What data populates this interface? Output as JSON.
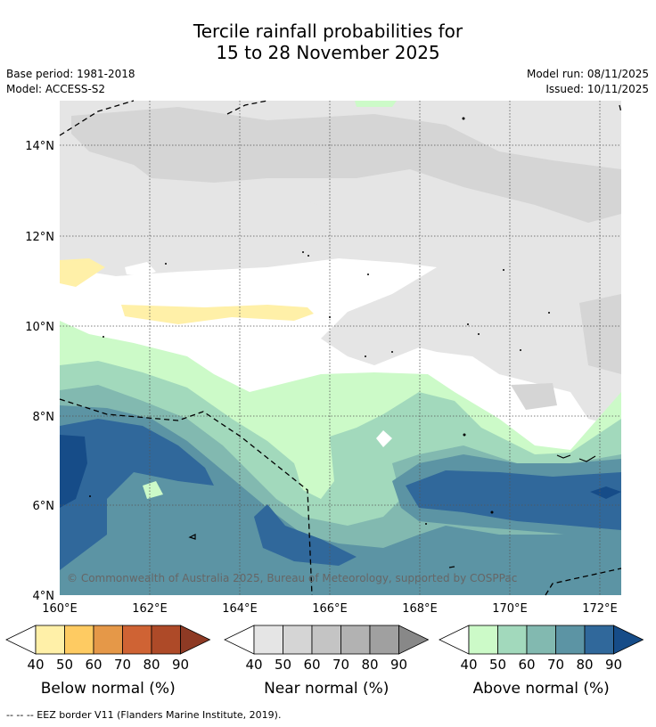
{
  "title": {
    "line1": "Tercile rainfall probabilities for",
    "line2": "15 to 28 November 2025"
  },
  "meta": {
    "base_period": "Base period: 1981-2018",
    "model": "Model: ACCESS-S2",
    "model_run": "Model run: 08/11/2025",
    "issued": "Issued: 10/11/2025"
  },
  "map": {
    "lat_labels": [
      "14°N",
      "12°N",
      "10°N",
      "8°N",
      "6°N",
      "4°N"
    ],
    "lon_labels": [
      "160°E",
      "162°E",
      "164°E",
      "166°E",
      "168°E",
      "170°E",
      "172°E"
    ],
    "copyright": "© Commonwealth of Australia 2025, Bureau of Meteorology, supported by COSPPac"
  },
  "colorbars": [
    {
      "name": "below",
      "label": "Below normal (%)",
      "ticks": [
        "40",
        "50",
        "60",
        "70",
        "80",
        "90"
      ],
      "colors": [
        "#fff0a8",
        "#fecb62",
        "#e59848",
        "#cf6334",
        "#ae4a28",
        "#8e3a24"
      ]
    },
    {
      "name": "near",
      "label": "Near normal (%)",
      "ticks": [
        "40",
        "50",
        "60",
        "70",
        "80",
        "90"
      ],
      "colors": [
        "#e5e5e5",
        "#d5d5d5",
        "#c4c4c4",
        "#b2b2b2",
        "#a0a0a0",
        "#888888"
      ]
    },
    {
      "name": "above",
      "label": "Above normal (%)",
      "ticks": [
        "40",
        "50",
        "60",
        "70",
        "80",
        "90"
      ],
      "colors": [
        "#ccfac8",
        "#a2d9bc",
        "#82b9b0",
        "#5c94a4",
        "#30689b",
        "#164c88"
      ]
    }
  ],
  "footer": "--  --  -- EEZ border V11 (Flanders Marine Institute, 2019)."
}
